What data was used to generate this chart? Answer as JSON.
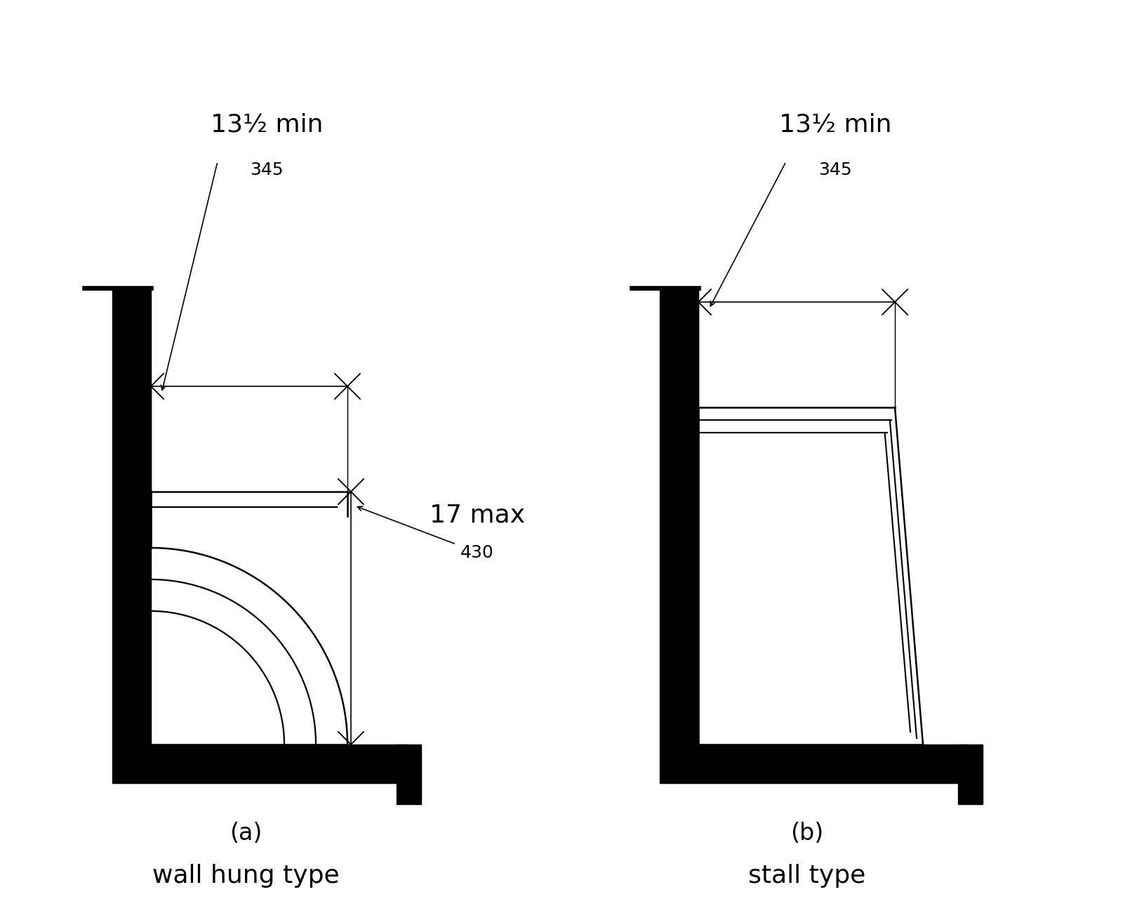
{
  "fig_width": 16.0,
  "fig_height": 12.8,
  "background_color": "#ffffff",
  "label_a": "(a)",
  "label_b": "(b)",
  "subtitle_a": "wall hung type",
  "subtitle_b": "stall type",
  "dim_top_main": "13½ min",
  "dim_top_sub": "345",
  "dim_side_main": "17 max",
  "dim_side_sub": "430",
  "wall_color": "#000000",
  "line_color": "#000000",
  "text_color": "#000000"
}
